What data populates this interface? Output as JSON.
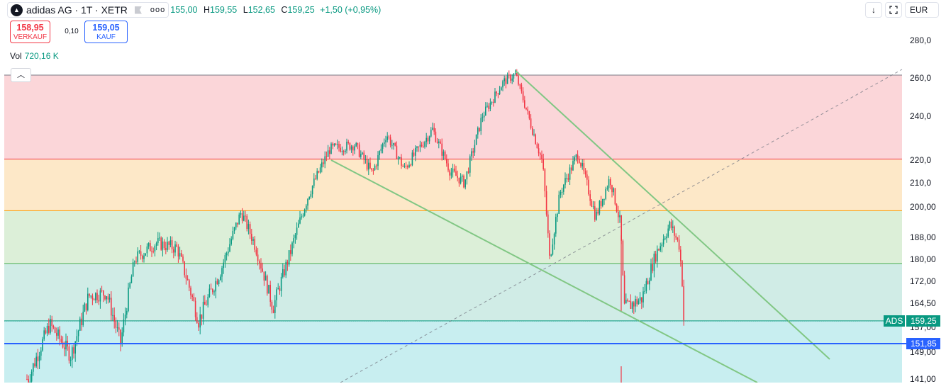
{
  "symbol": {
    "title": "adidas AG · 1T · XETR",
    "logo_icon": "adidas-logo-icon",
    "flag_icon": "flag-icon",
    "more_icon": "more-dots-icon"
  },
  "ohlc": {
    "open_value": "155,00",
    "high_label": "H",
    "high_value": "159,55",
    "low_label": "L",
    "low_value": "152,65",
    "close_label": "C",
    "close_value": "159,25",
    "change": "+1,50 (+0,95%)"
  },
  "trade": {
    "sell_price": "158,95",
    "sell_label": "VERKAUF",
    "spread": "0,10",
    "buy_price": "159,05",
    "buy_label": "KAUF"
  },
  "volume": {
    "label": "Vol",
    "value": "720,16 K"
  },
  "toolbar": {
    "currency": "EUR",
    "down_icon": "arrow-down-icon",
    "fullscreen_icon": "fullscreen-icon",
    "collapse_icon": "chevron-up-icon"
  },
  "price_axis": {
    "labels": [
      "280,0",
      "260,0",
      "240,0",
      "220,0",
      "210,0",
      "200,00",
      "188,00",
      "180,00",
      "172,00",
      "164,50",
      "157,00",
      "149,00",
      "141,00"
    ]
  },
  "price_tags": {
    "symbol_tag": "ADS",
    "last_price": "159,25",
    "line_price": "151,85"
  },
  "colors": {
    "up": "#089981",
    "down": "#f23645",
    "zone_red": "#fbd6d9",
    "zone_orange": "#fde8c8",
    "zone_green": "#dcefd8",
    "zone_teal": "#d0ece6",
    "zone_cyan": "#c8eef0",
    "trendline": "#81c784",
    "blue_line": "#2962ff"
  },
  "chart_data": {
    "type": "candlestick",
    "currency": "EUR",
    "last_close": 159.25,
    "horizontal_line": 151.85,
    "fib_levels": [
      261.5,
      220.5,
      198.5,
      178.5,
      159.0
    ],
    "series_close_approx": [
      {
        "x": 40,
        "close": 141
      },
      {
        "x": 70,
        "close": 158
      },
      {
        "x": 100,
        "close": 148
      },
      {
        "x": 125,
        "close": 167
      },
      {
        "x": 150,
        "close": 168
      },
      {
        "x": 170,
        "close": 152
      },
      {
        "x": 190,
        "close": 180
      },
      {
        "x": 220,
        "close": 186
      },
      {
        "x": 250,
        "close": 184
      },
      {
        "x": 280,
        "close": 159
      },
      {
        "x": 310,
        "close": 175
      },
      {
        "x": 340,
        "close": 198
      },
      {
        "x": 360,
        "close": 185
      },
      {
        "x": 385,
        "close": 163
      },
      {
        "x": 410,
        "close": 183
      },
      {
        "x": 435,
        "close": 205
      },
      {
        "x": 465,
        "close": 225
      },
      {
        "x": 500,
        "close": 227
      },
      {
        "x": 525,
        "close": 214
      },
      {
        "x": 545,
        "close": 232
      },
      {
        "x": 570,
        "close": 216
      },
      {
        "x": 610,
        "close": 234
      },
      {
        "x": 635,
        "close": 215
      },
      {
        "x": 655,
        "close": 210
      },
      {
        "x": 680,
        "close": 240
      },
      {
        "x": 710,
        "close": 258
      },
      {
        "x": 727,
        "close": 262
      },
      {
        "x": 745,
        "close": 240
      },
      {
        "x": 765,
        "close": 219
      },
      {
        "x": 775,
        "close": 180
      },
      {
        "x": 790,
        "close": 206
      },
      {
        "x": 815,
        "close": 223
      },
      {
        "x": 840,
        "close": 196
      },
      {
        "x": 860,
        "close": 212
      },
      {
        "x": 875,
        "close": 193
      },
      {
        "x": 880,
        "close": 163
      },
      {
        "x": 905,
        "close": 166
      },
      {
        "x": 925,
        "close": 182
      },
      {
        "x": 945,
        "close": 193
      },
      {
        "x": 958,
        "close": 185
      },
      {
        "x": 966,
        "close": 159.25
      }
    ]
  }
}
